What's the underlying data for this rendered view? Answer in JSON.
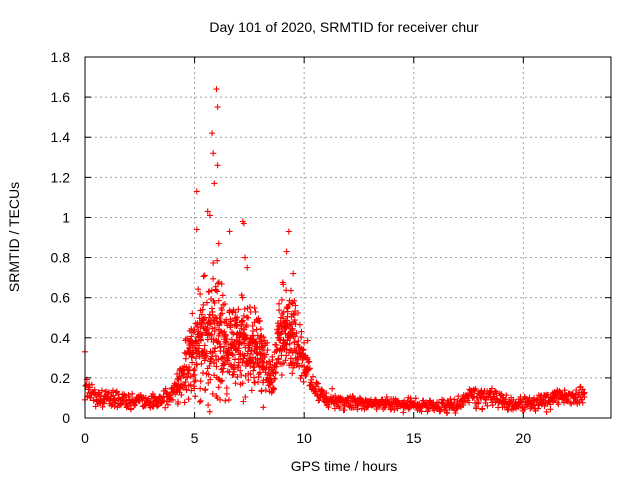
{
  "chart_data": {
    "type": "scatter",
    "title": "Day 101 of 2020, SRMTID for receiver chur",
    "xlabel": "GPS time / hours",
    "ylabel": "SRMTID / TECUs",
    "xlim": [
      0,
      24
    ],
    "ylim": [
      0,
      1.8
    ],
    "xticks": [
      0,
      5,
      10,
      15,
      20
    ],
    "xtick_labels": [
      "0",
      "5",
      "10",
      "15",
      "20"
    ],
    "yticks": [
      0,
      0.2,
      0.4,
      0.6,
      0.8,
      1,
      1.2,
      1.4,
      1.6,
      1.8
    ],
    "ytick_labels": [
      "0",
      "0.2",
      "0.4",
      "0.6",
      "0.8",
      "1",
      "1.2",
      "1.4",
      "1.6",
      "1.8"
    ],
    "grid": true,
    "marker": "+",
    "color": "#ff0000",
    "series": [
      {
        "name": "SRMTID",
        "profile": {
          "x": [
            0,
            0.5,
            1,
            2,
            3,
            3.5,
            4,
            4.5,
            5,
            5.5,
            6,
            6.5,
            7,
            7.5,
            8,
            8.5,
            9,
            9.5,
            10,
            10.5,
            11,
            12,
            13,
            14,
            15,
            16,
            17,
            17.5,
            18,
            18.5,
            19,
            20,
            21,
            22,
            22.8
          ],
          "median": [
            0.15,
            0.1,
            0.1,
            0.09,
            0.08,
            0.09,
            0.13,
            0.22,
            0.35,
            0.42,
            0.4,
            0.38,
            0.36,
            0.34,
            0.3,
            0.18,
            0.45,
            0.42,
            0.3,
            0.15,
            0.09,
            0.08,
            0.07,
            0.07,
            0.07,
            0.06,
            0.06,
            0.12,
            0.1,
            0.12,
            0.08,
            0.07,
            0.08,
            0.11,
            0.12
          ],
          "spread": [
            0.06,
            0.04,
            0.04,
            0.04,
            0.03,
            0.04,
            0.06,
            0.12,
            0.2,
            0.28,
            0.3,
            0.26,
            0.22,
            0.18,
            0.18,
            0.08,
            0.2,
            0.16,
            0.1,
            0.05,
            0.04,
            0.04,
            0.03,
            0.03,
            0.03,
            0.03,
            0.03,
            0.05,
            0.05,
            0.05,
            0.03,
            0.03,
            0.04,
            0.04,
            0.04
          ],
          "step_hours": 0.02
        },
        "peaks": [
          {
            "x": 0.0,
            "y": 0.33
          },
          {
            "x": 5.1,
            "y": 1.13
          },
          {
            "x": 5.1,
            "y": 0.94
          },
          {
            "x": 5.6,
            "y": 1.03
          },
          {
            "x": 5.7,
            "y": 1.01
          },
          {
            "x": 5.8,
            "y": 1.42
          },
          {
            "x": 5.85,
            "y": 1.32
          },
          {
            "x": 6.0,
            "y": 1.64
          },
          {
            "x": 6.05,
            "y": 1.55
          },
          {
            "x": 6.05,
            "y": 1.26
          },
          {
            "x": 5.9,
            "y": 1.17
          },
          {
            "x": 6.1,
            "y": 0.87
          },
          {
            "x": 6.6,
            "y": 0.93
          },
          {
            "x": 7.2,
            "y": 0.98
          },
          {
            "x": 7.25,
            "y": 0.97
          },
          {
            "x": 7.3,
            "y": 0.8
          },
          {
            "x": 7.4,
            "y": 0.75
          },
          {
            "x": 9.3,
            "y": 0.93
          },
          {
            "x": 9.2,
            "y": 0.83
          },
          {
            "x": 9.5,
            "y": 0.72
          }
        ]
      }
    ]
  }
}
